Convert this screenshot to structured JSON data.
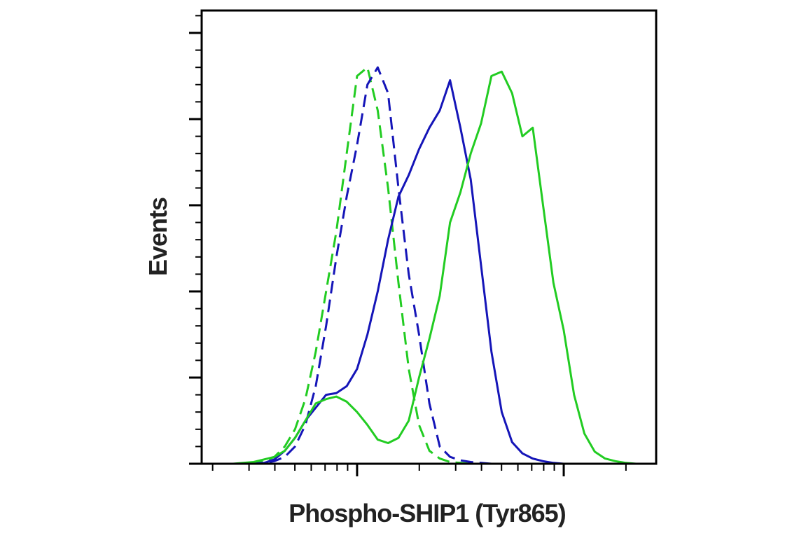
{
  "chart_data": {
    "type": "line",
    "xlabel": "Phospho-SHIP1 (Tyr865)",
    "ylabel": "Events",
    "xscale": "log",
    "xlim": [
      177,
      28000
    ],
    "xticks": [
      1000,
      10000
    ],
    "xminorticks": [
      200,
      300,
      400,
      500,
      600,
      700,
      800,
      900,
      2000,
      3000,
      4000,
      5000,
      6000,
      7000,
      8000,
      9000,
      20000
    ],
    "ylim": [
      0,
      5.26
    ],
    "yticks": [
      0,
      1,
      2,
      3,
      4,
      5
    ],
    "yminorticks": [
      0.2,
      0.4,
      0.6,
      0.8,
      1.2,
      1.4,
      1.6,
      1.8,
      2.2,
      2.4,
      2.6,
      2.8,
      3.2,
      3.4,
      3.6,
      3.8,
      4.2,
      4.4,
      4.6,
      4.8,
      5.2
    ],
    "x": [
      200,
      224,
      251,
      282,
      316,
      355,
      398,
      447,
      501,
      562,
      631,
      708,
      794,
      891,
      1000,
      1122,
      1259,
      1413,
      1585,
      1778,
      1995,
      2239,
      2512,
      2818,
      3162,
      3548,
      3981,
      4467,
      5012,
      5623,
      6310,
      7079,
      7943,
      8913,
      10000,
      11220,
      12589,
      14125,
      15849,
      17783,
      19953,
      22387,
      25119
    ],
    "series": [
      {
        "color": "#22cc22",
        "dashed": true,
        "values": [
          0,
          0,
          0,
          0,
          0.01,
          0.03,
          0.08,
          0.2,
          0.4,
          0.75,
          1.3,
          2.0,
          2.7,
          3.6,
          4.5,
          4.6,
          4.1,
          3.2,
          2.1,
          1.1,
          0.45,
          0.15,
          0.06,
          0.02,
          0.01,
          0,
          0,
          0,
          0,
          0,
          0,
          0,
          0,
          0,
          0,
          0,
          0,
          0,
          0,
          0,
          0,
          0,
          0
        ]
      },
      {
        "color": "#1515b8",
        "dashed": true,
        "values": [
          0,
          0,
          0,
          0,
          0,
          0.01,
          0.03,
          0.08,
          0.2,
          0.45,
          0.9,
          1.6,
          2.4,
          3.1,
          3.7,
          4.4,
          4.6,
          4.3,
          3.2,
          2.2,
          1.5,
          0.7,
          0.2,
          0.08,
          0.04,
          0.02,
          0.01,
          0,
          0,
          0,
          0,
          0,
          0,
          0,
          0,
          0,
          0,
          0,
          0,
          0,
          0,
          0,
          0
        ]
      },
      {
        "color": "#1515b8",
        "dashed": false,
        "values": [
          0,
          0,
          0,
          0,
          0,
          0.01,
          0.05,
          0.15,
          0.3,
          0.5,
          0.65,
          0.8,
          0.82,
          0.9,
          1.1,
          1.5,
          2.0,
          2.6,
          3.1,
          3.35,
          3.65,
          3.9,
          4.1,
          4.45,
          3.9,
          3.3,
          2.3,
          1.3,
          0.6,
          0.25,
          0.12,
          0.06,
          0.03,
          0.01,
          0,
          0,
          0,
          0,
          0,
          0,
          0,
          0,
          0
        ]
      },
      {
        "color": "#22cc22",
        "dashed": false,
        "values": [
          0,
          0,
          0,
          0.01,
          0.02,
          0.05,
          0.08,
          0.15,
          0.3,
          0.5,
          0.7,
          0.75,
          0.78,
          0.72,
          0.6,
          0.45,
          0.28,
          0.24,
          0.3,
          0.5,
          1.0,
          1.45,
          1.95,
          2.8,
          3.15,
          3.6,
          3.95,
          4.5,
          4.55,
          4.3,
          3.8,
          3.9,
          3.0,
          2.1,
          1.55,
          0.8,
          0.35,
          0.14,
          0.06,
          0.03,
          0.01,
          0,
          0
        ]
      }
    ]
  }
}
